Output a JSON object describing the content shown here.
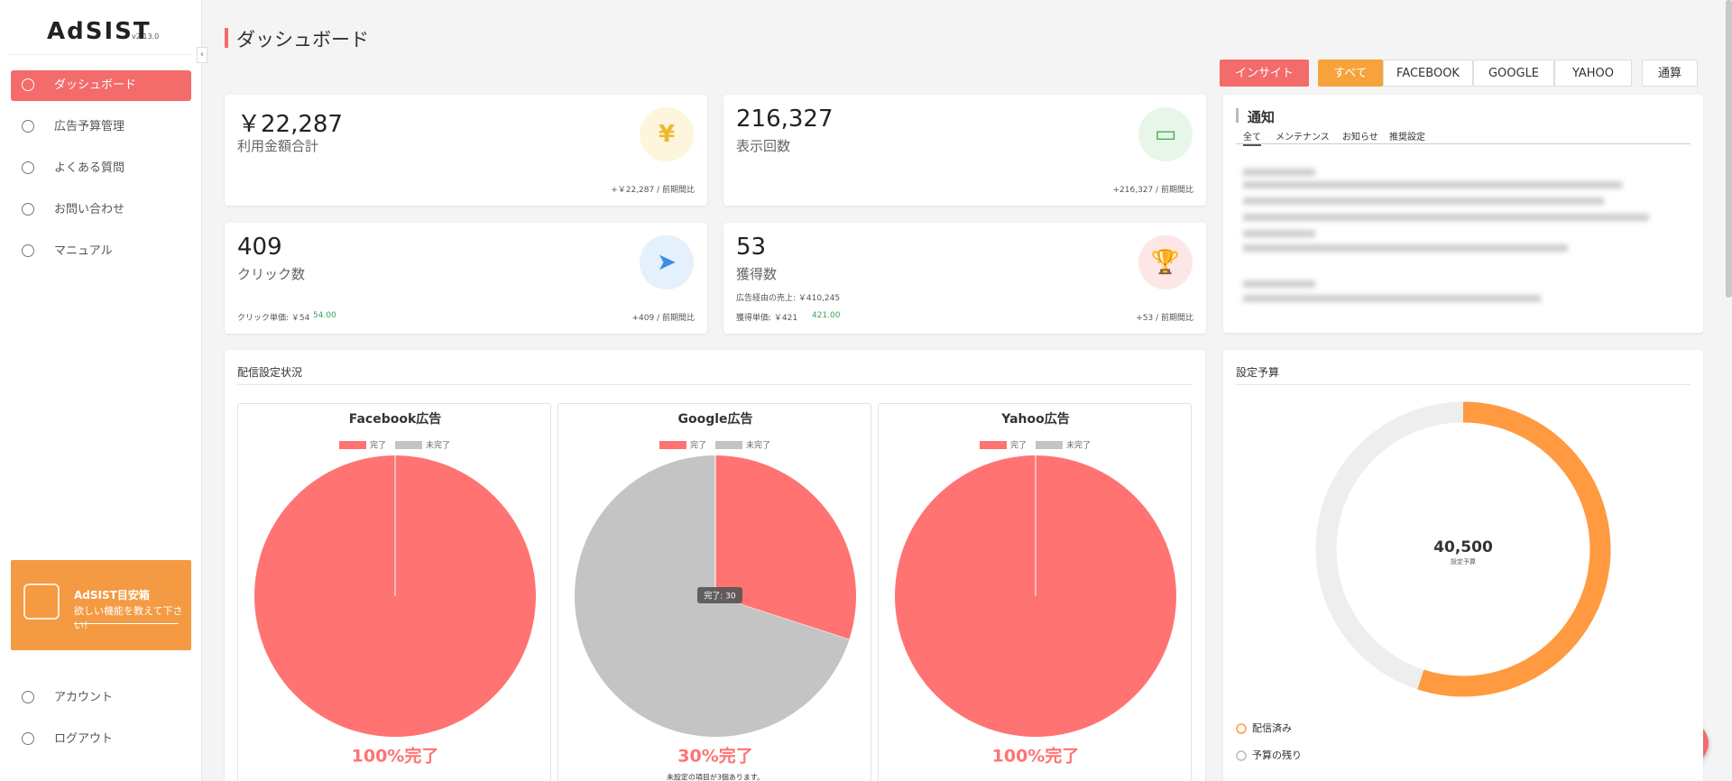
{
  "sidebar": {
    "logo": "AdSIST",
    "version": "v2.13.0",
    "nav": [
      "ダッシュボード",
      "広告予算管理",
      "よくある質問",
      "お問い合わせ",
      "マニュアル"
    ],
    "banner": {
      "title": "AdSIST目安箱",
      "text": "欲しい機能を教えて下さい!"
    },
    "footer_nav": [
      "アカウント",
      "ログアウト"
    ]
  },
  "header": {
    "title": "ダッシュボード",
    "buttons": [
      "インサイト",
      "すべて",
      "FACEBOOK",
      "GOOGLE",
      "YAHOO",
      "通算"
    ]
  },
  "metrics": [
    {
      "value": "￥22,287",
      "label": "利用金額合計",
      "change": "+￥22,287 / 前期間比"
    },
    {
      "value": "216,327",
      "label": "表示回数",
      "change": "+216,327 / 前期間比"
    },
    {
      "value": "409",
      "label": "クリック数",
      "sub": "クリック単価: ￥54",
      "sub_value": "54.00",
      "change": "+409 / 前期間比"
    },
    {
      "value": "53",
      "label": "獲得数",
      "note": "広告経由の売上: ￥410,245",
      "sub": "獲得単価: ￥421",
      "sub_value": "421.00",
      "change": "+53 / 前期間比"
    }
  ],
  "notifications": {
    "title": "通知",
    "tabs": [
      "全て",
      "メンテナンス",
      "お知らせ",
      "推奨設定"
    ]
  },
  "delivery": {
    "title": "配信設定状況",
    "legend": [
      "完了",
      "未完了"
    ],
    "colors": [
      "#ff7373",
      "#c4c4c4"
    ],
    "charts": [
      {
        "name": "Facebook広告",
        "values": [
          100,
          0
        ],
        "result": "100%完了"
      },
      {
        "name": "Google広告",
        "values": [
          30,
          70
        ],
        "result": "30%完了",
        "tooltip": "完了: 30",
        "note": "未設定の項目が3個あります。"
      },
      {
        "name": "Yahoo広告",
        "values": [
          100,
          0
        ],
        "result": "100%完了"
      }
    ]
  },
  "budget": {
    "title": "設定予算",
    "total": "40,500",
    "caption": "設定予算",
    "legend": [
      "配信済み",
      "予算の残り"
    ],
    "values": [
      22287,
      18213
    ],
    "colors": [
      "#ff9a40",
      "#eeeeee"
    ]
  }
}
